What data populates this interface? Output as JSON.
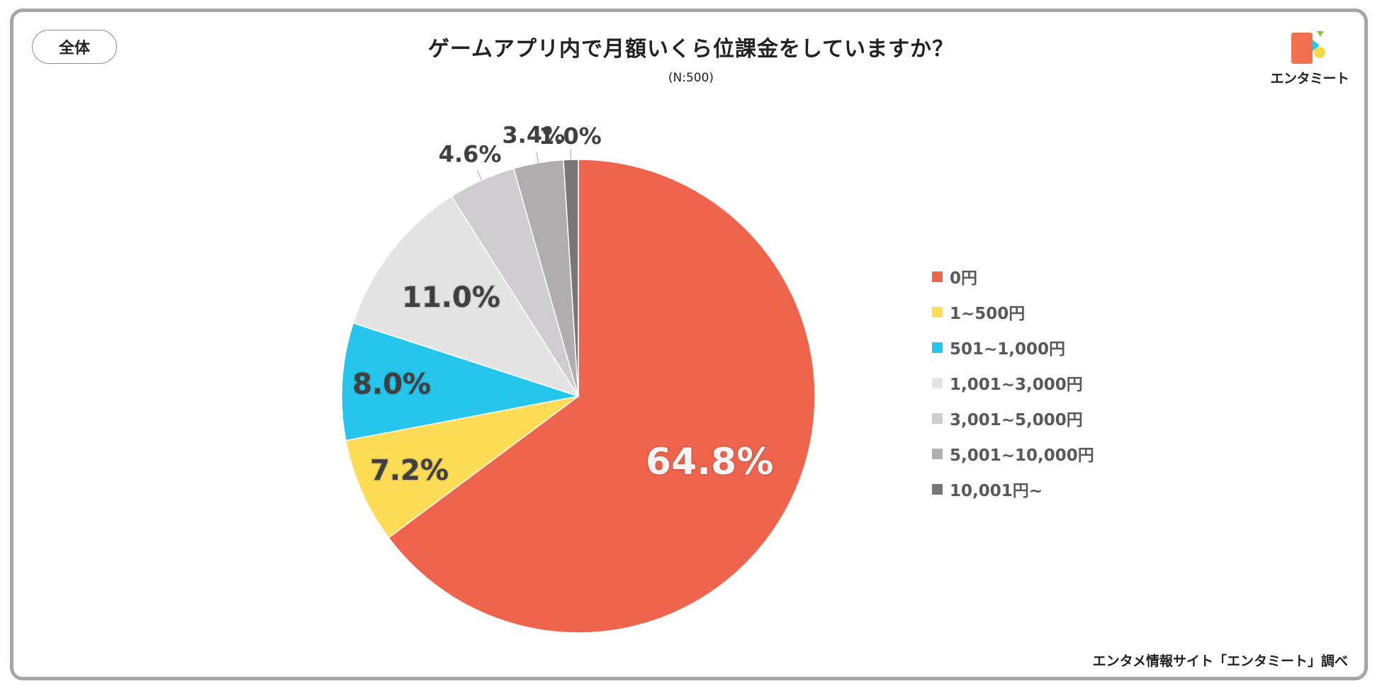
{
  "scope_badge": "全体",
  "title": "ゲームアプリ内で月額いくら位課金をしていますか？",
  "subtitle": "(N:500)",
  "logo": {
    "text": "エンタミート",
    "colors": [
      "#ef6f4f",
      "#2bc4e8",
      "#f5d84a",
      "#8bc34a"
    ]
  },
  "source": "エンタメ情報サイト「エンタミート」調べ",
  "chart_data": {
    "type": "pie",
    "title": "ゲームアプリ内で月額いくら位課金をしていますか？",
    "subtitle": "(N:500)",
    "legend_position": "right",
    "categories": [
      "0円",
      "1~500円",
      "501~1,000円",
      "1,001~3,000円",
      "3,001~5,000円",
      "5,001~10,000円",
      "10,001円~"
    ],
    "values": [
      64.8,
      7.2,
      8.0,
      11.0,
      4.6,
      3.4,
      1.0
    ],
    "labels": [
      "64.8%",
      "7.2%",
      "8.0%",
      "11.0%",
      "4.6%",
      "3.4%",
      "1.0%"
    ],
    "colors": [
      "#ef644c",
      "#fddc56",
      "#26c6ec",
      "#e5e4e5",
      "#cfcdcf",
      "#b0adae",
      "#7a7677"
    ],
    "label_colors": [
      "#f5f5f5",
      "#404040",
      "#404040",
      "#404040",
      "#404040",
      "#404040",
      "#404040"
    ]
  }
}
